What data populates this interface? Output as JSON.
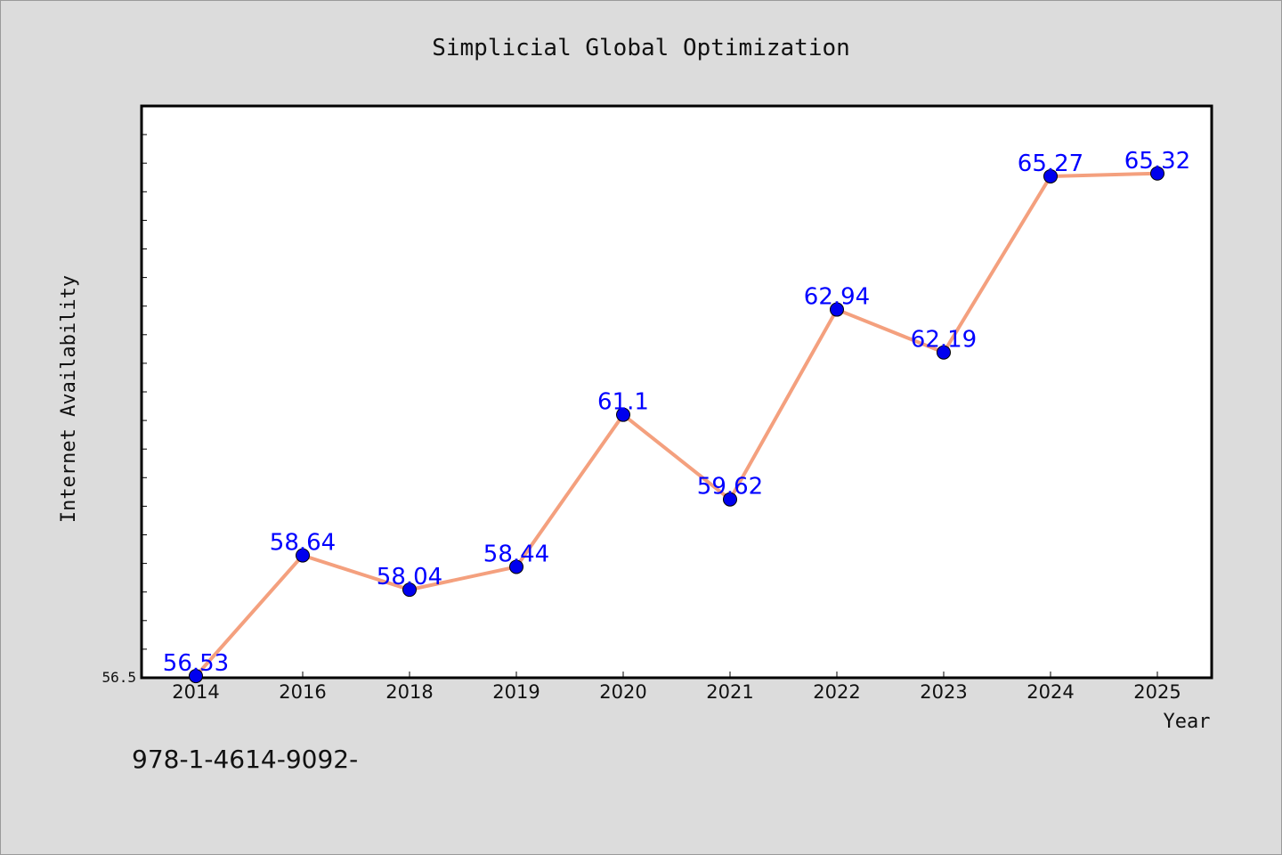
{
  "chart_data": {
    "type": "line",
    "title": "Simplicial Global Optimization",
    "xlabel": "Year",
    "ylabel": "Internet Availability",
    "categories": [
      "2014",
      "2016",
      "2018",
      "2019",
      "2020",
      "2021",
      "2022",
      "2023",
      "2024",
      "2025"
    ],
    "series": [
      {
        "values": [
          56.53,
          58.64,
          58.04,
          58.44,
          61.1,
          59.62,
          62.94,
          62.19,
          65.27,
          65.32
        ],
        "labels": [
          "56.53",
          "58.64",
          "58.04",
          "58.44",
          "61.1",
          "59.62",
          "62.94",
          "62.19",
          "65.27",
          "65.32"
        ]
      }
    ],
    "ytick_labels": [
      "56.5"
    ],
    "ylim": [
      56.5,
      66.5
    ],
    "grid": false,
    "line_color": "#f4a07e",
    "marker_color": "#0000ee",
    "label_color": "#0000ff"
  },
  "footer_text": "978-1-4614-9092-"
}
